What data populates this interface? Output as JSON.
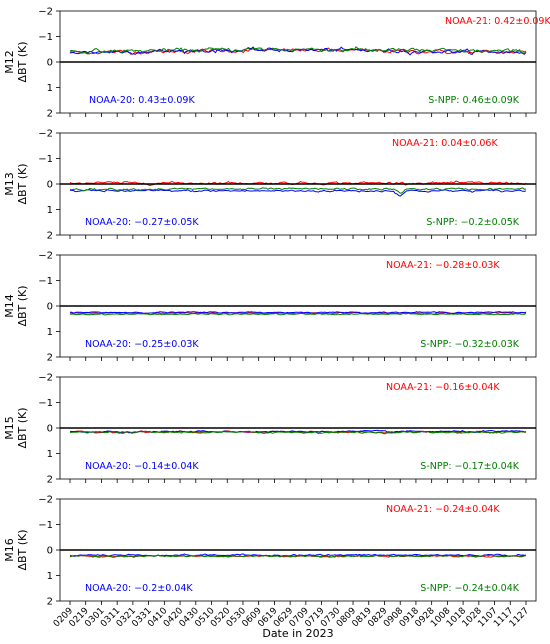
{
  "chart_data": {
    "type": "line",
    "xlabel": "Date in 2023",
    "x_ticks": [
      "0209",
      "0219",
      "0301",
      "0311",
      "0321",
      "0331",
      "0410",
      "0420",
      "0430",
      "0510",
      "0520",
      "0530",
      "0609",
      "0619",
      "0629",
      "0709",
      "0719",
      "0730",
      "0809",
      "0819",
      "0829",
      "0908",
      "0918",
      "0928",
      "1008",
      "1018",
      "1028",
      "1107",
      "1117",
      "1127"
    ],
    "x_range": [
      "0209",
      "1127"
    ],
    "y_range": [
      -2,
      2
    ],
    "y_ticks": [
      "−2",
      "−1",
      "0",
      "1",
      "2"
    ],
    "zero_line": true,
    "grid": false,
    "colors": {
      "NOAA-21": "#ff0000",
      "NOAA-20": "#0000ff",
      "S-NPP": "#008000",
      "zero": "#000000"
    },
    "panels": [
      {
        "ylabel_band": "M12",
        "ylabel": "ΔBT (K)",
        "annotations": [
          {
            "text": "NOAA-21: 0.42±0.09K",
            "color": "#ff0000",
            "position": "top-right"
          },
          {
            "text": "NOAA-20: 0.43±0.09K",
            "color": "#0000ff",
            "position": "bottom-left"
          },
          {
            "text": "S-NPP: 0.46±0.09K",
            "color": "#008000",
            "position": "bottom-right"
          }
        ],
        "series": [
          {
            "name": "NOAA-21",
            "mean": 0.42,
            "std": 0.09
          },
          {
            "name": "NOAA-20",
            "mean": 0.43,
            "std": 0.09
          },
          {
            "name": "S-NPP",
            "mean": 0.46,
            "std": 0.09
          }
        ]
      },
      {
        "ylabel_band": "M13",
        "ylabel": "ΔBT (K)",
        "annotations": [
          {
            "text": "NOAA-21: 0.04±0.06K",
            "color": "#ff0000",
            "position": "top-right"
          },
          {
            "text": "NOAA-20: −0.27±0.05K",
            "color": "#0000ff",
            "position": "bottom-left"
          },
          {
            "text": "S-NPP: −0.2±0.05K",
            "color": "#008000",
            "position": "bottom-right"
          }
        ],
        "series": [
          {
            "name": "NOAA-21",
            "mean": 0.04,
            "std": 0.06
          },
          {
            "name": "NOAA-20",
            "mean": -0.27,
            "std": 0.05
          },
          {
            "name": "S-NPP",
            "mean": -0.2,
            "std": 0.05
          }
        ]
      },
      {
        "ylabel_band": "M14",
        "ylabel": "ΔBT (K)",
        "annotations": [
          {
            "text": "NOAA-21: −0.28±0.03K",
            "color": "#ff0000",
            "position": "top-right"
          },
          {
            "text": "NOAA-20: −0.25±0.03K",
            "color": "#0000ff",
            "position": "bottom-left"
          },
          {
            "text": "S-NPP: −0.32±0.03K",
            "color": "#008000",
            "position": "bottom-right"
          }
        ],
        "series": [
          {
            "name": "NOAA-21",
            "mean": -0.28,
            "std": 0.03
          },
          {
            "name": "NOAA-20",
            "mean": -0.25,
            "std": 0.03
          },
          {
            "name": "S-NPP",
            "mean": -0.32,
            "std": 0.03
          }
        ]
      },
      {
        "ylabel_band": "M15",
        "ylabel": "ΔBT (K)",
        "annotations": [
          {
            "text": "NOAA-21: −0.16±0.04K",
            "color": "#ff0000",
            "position": "top-right"
          },
          {
            "text": "NOAA-20: −0.14±0.04K",
            "color": "#0000ff",
            "position": "bottom-left"
          },
          {
            "text": "S-NPP: −0.17±0.04K",
            "color": "#008000",
            "position": "bottom-right"
          }
        ],
        "series": [
          {
            "name": "NOAA-21",
            "mean": -0.16,
            "std": 0.04
          },
          {
            "name": "NOAA-20",
            "mean": -0.14,
            "std": 0.04
          },
          {
            "name": "S-NPP",
            "mean": -0.17,
            "std": 0.04
          }
        ]
      },
      {
        "ylabel_band": "M16",
        "ylabel": "ΔBT (K)",
        "annotations": [
          {
            "text": "NOAA-21: −0.24±0.04K",
            "color": "#ff0000",
            "position": "top-right"
          },
          {
            "text": "NOAA-20: −0.2±0.04K",
            "color": "#0000ff",
            "position": "bottom-left"
          },
          {
            "text": "S-NPP: −0.24±0.04K",
            "color": "#008000",
            "position": "bottom-right"
          }
        ],
        "series": [
          {
            "name": "NOAA-21",
            "mean": -0.24,
            "std": 0.04
          },
          {
            "name": "NOAA-20",
            "mean": -0.2,
            "std": 0.04
          },
          {
            "name": "S-NPP",
            "mean": -0.24,
            "std": 0.04
          }
        ]
      }
    ]
  }
}
